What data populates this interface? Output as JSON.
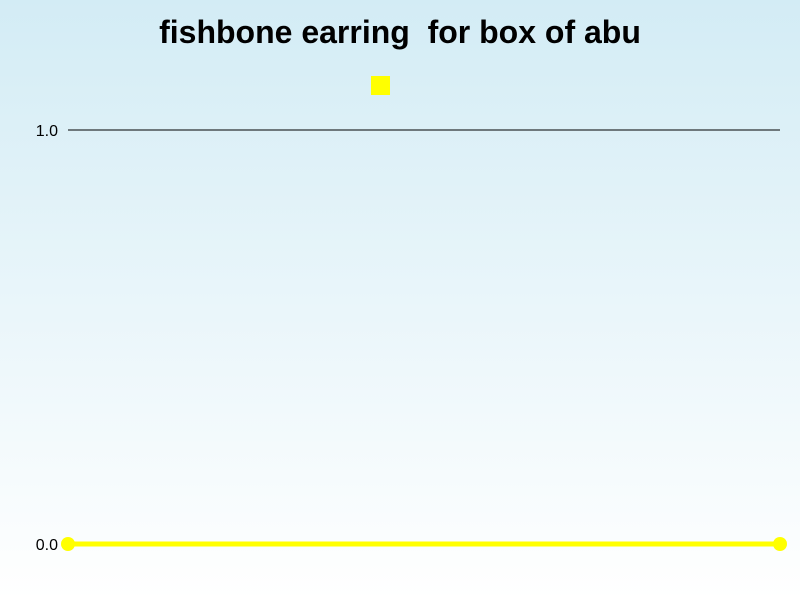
{
  "chart_data": {
    "type": "line",
    "title": "fishbone earring  for box of abu",
    "xlabel": "",
    "ylabel": "",
    "ylim": [
      0.0,
      1.0
    ],
    "y_ticks": [
      "0.0",
      "1.0"
    ],
    "x": [
      0,
      1
    ],
    "series": [
      {
        "values": [
          0.0,
          0.0
        ],
        "color": "#ffff00"
      }
    ],
    "grid": true,
    "legend_position": "top-center",
    "background_gradient": [
      "#d3ecf5",
      "#ffffff"
    ],
    "gridline_color": "#000000"
  }
}
